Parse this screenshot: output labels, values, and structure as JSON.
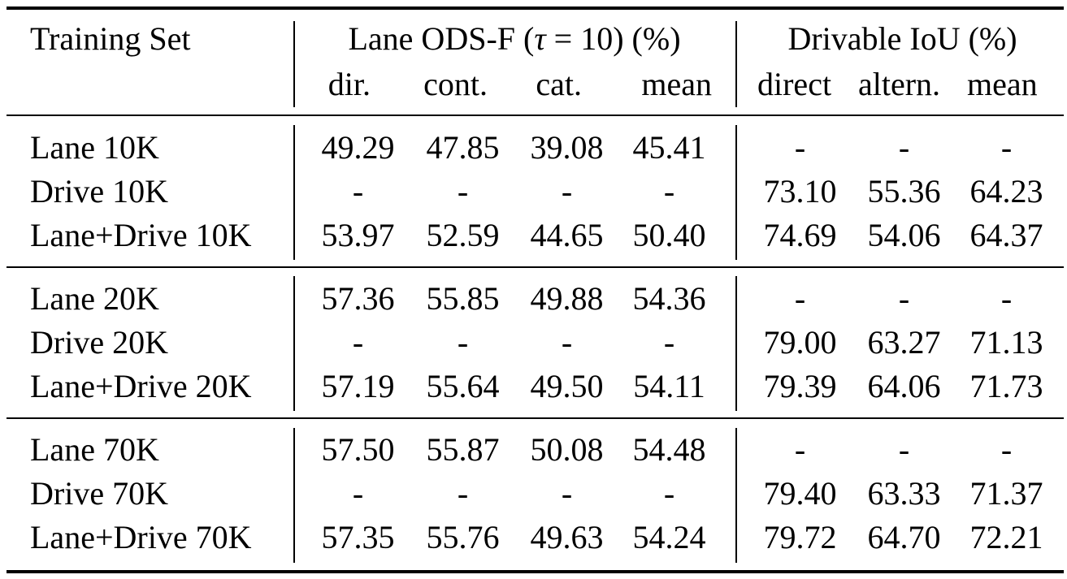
{
  "header": {
    "training_set": "Training Set",
    "lane_group_prefix": "Lane ODS-F (",
    "lane_group_tau": "τ",
    "lane_group_suffix": " = 10) (%)",
    "drive_group": "Drivable IoU (%)",
    "lane_cols": [
      "dir.",
      "cont.",
      "cat.",
      "mean"
    ],
    "drive_cols": [
      "direct",
      "altern.",
      "mean"
    ]
  },
  "groups": [
    {
      "rows": [
        {
          "name": "Lane 10K",
          "lane": [
            "49.29",
            "47.85",
            "39.08",
            "45.41"
          ],
          "drive": [
            "-",
            "-",
            "-"
          ]
        },
        {
          "name": "Drive 10K",
          "lane": [
            "-",
            "-",
            "-",
            "-"
          ],
          "drive": [
            "73.10",
            "55.36",
            "64.23"
          ]
        },
        {
          "name": "Lane+Drive 10K",
          "lane": [
            "53.97",
            "52.59",
            "44.65",
            "50.40"
          ],
          "drive": [
            "74.69",
            "54.06",
            "64.37"
          ]
        }
      ]
    },
    {
      "rows": [
        {
          "name": "Lane 20K",
          "lane": [
            "57.36",
            "55.85",
            "49.88",
            "54.36"
          ],
          "drive": [
            "-",
            "-",
            "-"
          ]
        },
        {
          "name": "Drive 20K",
          "lane": [
            "-",
            "-",
            "-",
            "-"
          ],
          "drive": [
            "79.00",
            "63.27",
            "71.13"
          ]
        },
        {
          "name": "Lane+Drive 20K",
          "lane": [
            "57.19",
            "55.64",
            "49.50",
            "54.11"
          ],
          "drive": [
            "79.39",
            "64.06",
            "71.73"
          ]
        }
      ]
    },
    {
      "rows": [
        {
          "name": "Lane 70K",
          "lane": [
            "57.50",
            "55.87",
            "50.08",
            "54.48"
          ],
          "drive": [
            "-",
            "-",
            "-"
          ]
        },
        {
          "name": "Drive 70K",
          "lane": [
            "-",
            "-",
            "-",
            "-"
          ],
          "drive": [
            "79.40",
            "63.33",
            "71.37"
          ]
        },
        {
          "name": "Lane+Drive 70K",
          "lane": [
            "57.35",
            "55.76",
            "49.63",
            "54.24"
          ],
          "drive": [
            "79.72",
            "64.70",
            "72.21"
          ]
        }
      ]
    }
  ]
}
